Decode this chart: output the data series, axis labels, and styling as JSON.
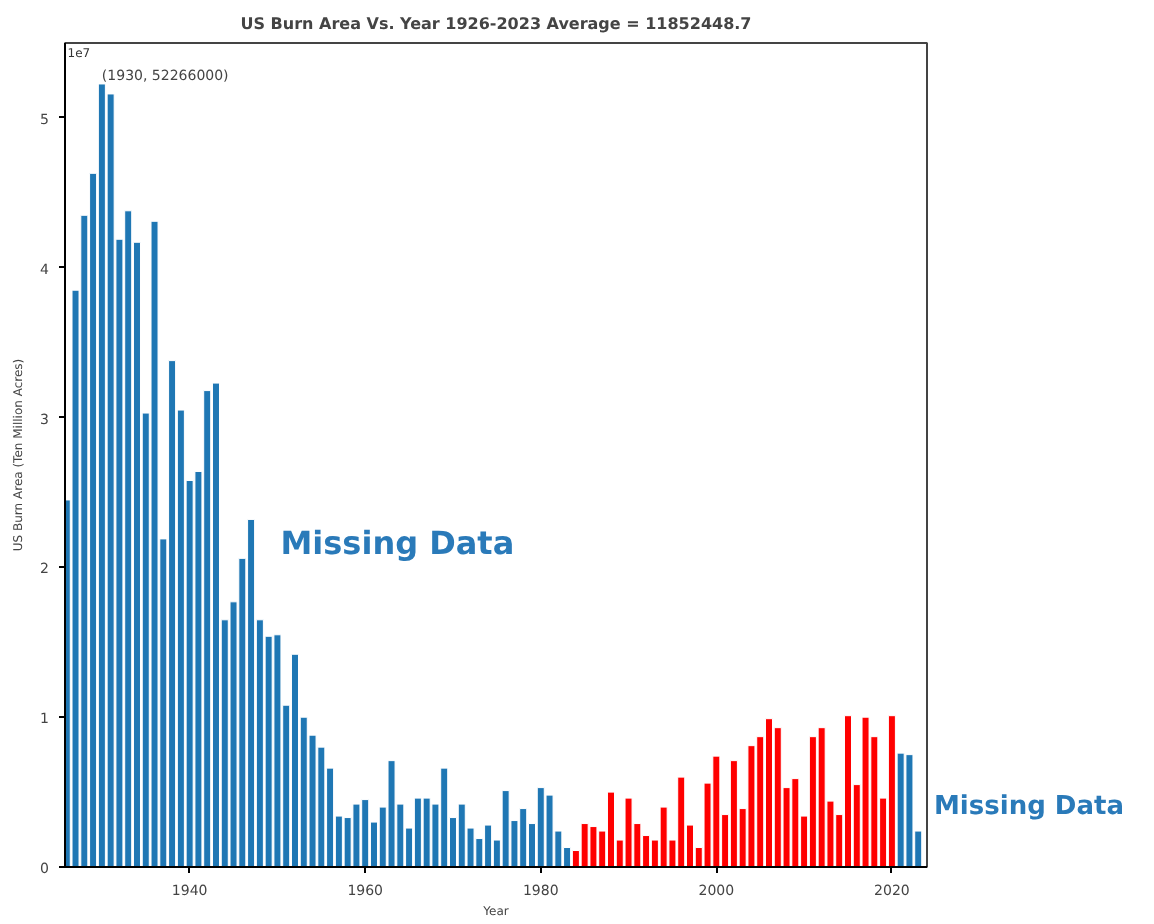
{
  "chart_data": {
    "type": "bar",
    "title": "US Burn Area Vs. Year 1926-2023 Average = 11852448.7",
    "xlabel": "Year",
    "ylabel": "US Burn Area (Ten Million Acres)",
    "x": [
      1926,
      1927,
      1928,
      1929,
      1930,
      1931,
      1932,
      1933,
      1934,
      1935,
      1936,
      1937,
      1938,
      1939,
      1940,
      1941,
      1942,
      1943,
      1944,
      1945,
      1946,
      1947,
      1948,
      1949,
      1950,
      1951,
      1952,
      1953,
      1954,
      1955,
      1956,
      1957,
      1958,
      1959,
      1960,
      1961,
      1962,
      1963,
      1964,
      1965,
      1966,
      1967,
      1968,
      1969,
      1970,
      1971,
      1972,
      1973,
      1974,
      1975,
      1976,
      1977,
      1978,
      1979,
      1980,
      1981,
      1982,
      1983,
      1984,
      1985,
      1986,
      1987,
      1988,
      1989,
      1990,
      1991,
      1992,
      1993,
      1994,
      1995,
      1996,
      1997,
      1998,
      1999,
      2000,
      2001,
      2002,
      2003,
      2004,
      2005,
      2006,
      2007,
      2008,
      2009,
      2010,
      2011,
      2012,
      2013,
      2014,
      2015,
      2016,
      2017,
      2018,
      2019,
      2020,
      2021,
      2022,
      2023
    ],
    "values": [
      2.45,
      3.85,
      4.35,
      4.63,
      5.2266,
      5.16,
      4.19,
      4.38,
      4.17,
      3.03,
      4.31,
      2.19,
      3.38,
      3.05,
      2.58,
      2.64,
      3.18,
      3.23,
      1.65,
      1.77,
      2.06,
      2.32,
      1.65,
      1.54,
      1.55,
      1.08,
      1.42,
      1.0,
      0.88,
      0.8,
      0.66,
      0.34,
      0.33,
      0.42,
      0.45,
      0.3,
      0.4,
      0.71,
      0.42,
      0.26,
      0.46,
      0.46,
      0.42,
      0.66,
      0.33,
      0.42,
      0.26,
      0.19,
      0.28,
      0.18,
      0.51,
      0.31,
      0.39,
      0.29,
      0.53,
      0.48,
      0.24,
      0.13,
      0.11,
      0.29,
      0.27,
      0.24,
      0.5,
      0.18,
      0.46,
      0.29,
      0.21,
      0.18,
      0.4,
      0.18,
      0.6,
      0.28,
      0.13,
      0.56,
      0.74,
      0.35,
      0.71,
      0.39,
      0.81,
      0.87,
      0.99,
      0.93,
      0.53,
      0.59,
      0.34,
      0.87,
      0.93,
      0.44,
      0.35,
      1.01,
      0.55,
      1.0,
      0.87,
      0.46,
      1.01,
      0.76,
      0.75,
      0.24
    ],
    "colors": [
      "#1f77b4",
      "#1f77b4",
      "#1f77b4",
      "#1f77b4",
      "#1f77b4",
      "#1f77b4",
      "#1f77b4",
      "#1f77b4",
      "#1f77b4",
      "#1f77b4",
      "#1f77b4",
      "#1f77b4",
      "#1f77b4",
      "#1f77b4",
      "#1f77b4",
      "#1f77b4",
      "#1f77b4",
      "#1f77b4",
      "#1f77b4",
      "#1f77b4",
      "#1f77b4",
      "#1f77b4",
      "#1f77b4",
      "#1f77b4",
      "#1f77b4",
      "#1f77b4",
      "#1f77b4",
      "#1f77b4",
      "#1f77b4",
      "#1f77b4",
      "#1f77b4",
      "#1f77b4",
      "#1f77b4",
      "#1f77b4",
      "#1f77b4",
      "#1f77b4",
      "#1f77b4",
      "#1f77b4",
      "#1f77b4",
      "#1f77b4",
      "#1f77b4",
      "#1f77b4",
      "#1f77b4",
      "#1f77b4",
      "#1f77b4",
      "#1f77b4",
      "#1f77b4",
      "#1f77b4",
      "#1f77b4",
      "#1f77b4",
      "#1f77b4",
      "#1f77b4",
      "#1f77b4",
      "#1f77b4",
      "#1f77b4",
      "#1f77b4",
      "#1f77b4",
      "#1f77b4",
      "#ff0000",
      "#ff0000",
      "#ff0000",
      "#ff0000",
      "#ff0000",
      "#ff0000",
      "#ff0000",
      "#ff0000",
      "#ff0000",
      "#ff0000",
      "#ff0000",
      "#ff0000",
      "#ff0000",
      "#ff0000",
      "#ff0000",
      "#ff0000",
      "#ff0000",
      "#ff0000",
      "#ff0000",
      "#ff0000",
      "#ff0000",
      "#ff0000",
      "#ff0000",
      "#ff0000",
      "#ff0000",
      "#ff0000",
      "#ff0000",
      "#ff0000",
      "#ff0000",
      "#ff0000",
      "#ff0000",
      "#ff0000",
      "#ff0000",
      "#ff0000",
      "#ff0000",
      "#ff0000",
      "#ff0000",
      "#1f77b4",
      "#1f77b4",
      "#1f77b4"
    ],
    "xlim": [
      1925.8,
      2024
    ],
    "xticks": [
      1940,
      1960,
      1980,
      2000,
      2020
    ],
    "ylim": [
      0,
      5.5
    ],
    "yticks": [
      0,
      1,
      2,
      3,
      4,
      5
    ],
    "grid": false,
    "annotations": [
      "1e7",
      {
        "text": "(1930, 52266000)",
        "x": 1930,
        "y": 5.2266
      },
      "Missing Data",
      "Missing Data"
    ]
  }
}
